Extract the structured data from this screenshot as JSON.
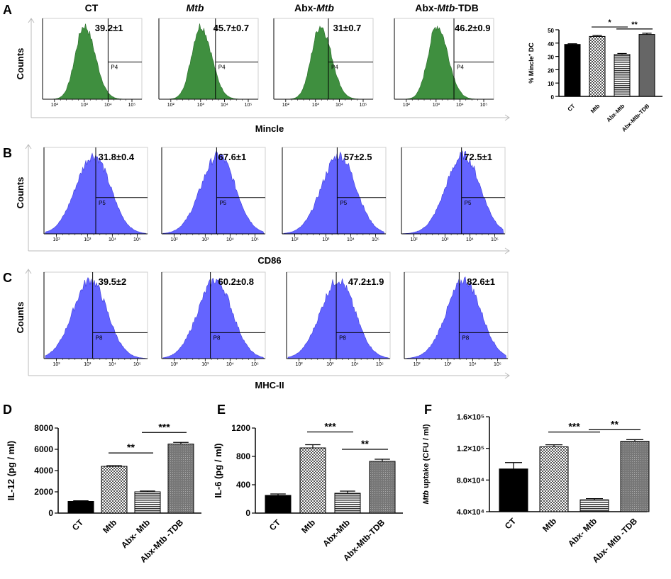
{
  "panels": {
    "A": "A",
    "B": "B",
    "C": "C",
    "D": "D",
    "E": "E",
    "F": "F"
  },
  "flow": {
    "columns": [
      {
        "label": "CT",
        "italic": false
      },
      {
        "label": "Mtb",
        "italic": true
      },
      {
        "label": "Abx-Mtb",
        "italic_part": "Mtb"
      },
      {
        "label": "Abx-Mtb-TDB",
        "italic_part": "Mtb"
      }
    ],
    "column_titles": [
      "CT",
      "Mtb",
      "Abx-",
      "Mtb",
      "Abx-",
      "Mtb",
      "-TDB"
    ],
    "y_label": "Counts",
    "tick_labels": [
      "10²",
      "10³",
      "10⁴",
      "10⁵"
    ],
    "rows": [
      {
        "name": "mincle",
        "xlabel": "Mincle",
        "gate": "P4",
        "color": "#3f8f3f",
        "annotations": [
          "39.2±1",
          "45.7±0.7",
          "31±0.7",
          "46.2±0.9"
        ]
      },
      {
        "name": "cd86",
        "xlabel": "CD86",
        "gate": "P5",
        "color": "#6464ff",
        "annotations": [
          "31.8±0.4",
          "67.6±1",
          "57±2.5",
          "72.5±1"
        ]
      },
      {
        "name": "mhc2",
        "xlabel": "MHC-II",
        "gate": "P8",
        "color": "#6464ff",
        "annotations": [
          "39.5±2",
          "60.2±0.8",
          "47.2±1.9",
          "82.6±1"
        ]
      }
    ]
  },
  "chart_data": [
    {
      "type": "bar",
      "panel": "A",
      "title": "",
      "ylabel": "% Mincle⁺ DC",
      "ylabel_parts": [
        "% Mincle",
        "+",
        " DC"
      ],
      "categories": [
        "CT",
        "Mtb",
        "Abx-Mtb",
        "Abx-Mtb-TDB"
      ],
      "values": [
        39,
        45,
        31.5,
        46.5
      ],
      "errors": [
        0.5,
        0.7,
        0.7,
        0.9
      ],
      "ylim": [
        0,
        50
      ],
      "yticks": [
        "0",
        "10",
        "20",
        "30",
        "40",
        "50"
      ],
      "significance": [
        {
          "from": 1,
          "to": 2,
          "label": "*"
        },
        {
          "from": 2,
          "to": 3,
          "label": "**"
        }
      ]
    },
    {
      "type": "bar",
      "panel": "D",
      "title": "",
      "ylabel": "IL-12 (pg / ml)",
      "categories": [
        "CT",
        "Mtb",
        "Abx- Mtb",
        "Abx-Mtb -TDB"
      ],
      "values": [
        1100,
        4400,
        2000,
        6500
      ],
      "errors": [
        60,
        60,
        80,
        150
      ],
      "ylim": [
        0,
        8000
      ],
      "yticks": [
        "0",
        "2000",
        "4000",
        "6000",
        "8000"
      ],
      "significance": [
        {
          "from": 1,
          "to": 2,
          "label": "**"
        },
        {
          "from": 2,
          "to": 3,
          "label": "***"
        }
      ]
    },
    {
      "type": "bar",
      "panel": "E",
      "title": "",
      "ylabel": "IL-6 (pg / ml)",
      "categories": [
        "CT",
        "Mtb",
        "Abx-Mtb",
        "Abx-Mtb-TDB"
      ],
      "values": [
        250,
        920,
        280,
        730
      ],
      "errors": [
        20,
        45,
        30,
        30
      ],
      "ylim": [
        0,
        1200
      ],
      "yticks": [
        "0",
        "400",
        "800",
        "1200"
      ],
      "significance": [
        {
          "from": 1,
          "to": 2,
          "label": "***"
        },
        {
          "from": 2,
          "to": 3,
          "label": "**"
        }
      ]
    },
    {
      "type": "bar",
      "panel": "F",
      "title": "",
      "ylabel": "Mtb uptake (CFU / ml)",
      "ylabel_parts": [
        "Mtb",
        " uptake (CFU / ml)"
      ],
      "categories": [
        "CT",
        "Mtb",
        "Abx- Mtb",
        "Abx- Mtb -TDB"
      ],
      "values": [
        94000,
        122000,
        55000,
        129000
      ],
      "errors": [
        8000,
        2500,
        1500,
        2000
      ],
      "ylim": [
        40000,
        160000
      ],
      "yticks": [
        "4.0×10⁴",
        "8.0×10⁴",
        "1.2×10⁵",
        "1.6×10⁵"
      ],
      "significance": [
        {
          "from": 1,
          "to": 2,
          "label": "***"
        },
        {
          "from": 2,
          "to": 3,
          "label": "**"
        }
      ]
    }
  ],
  "colors": {
    "black": "#000000",
    "green": "#3f8f3f",
    "blue": "#6464ff"
  }
}
